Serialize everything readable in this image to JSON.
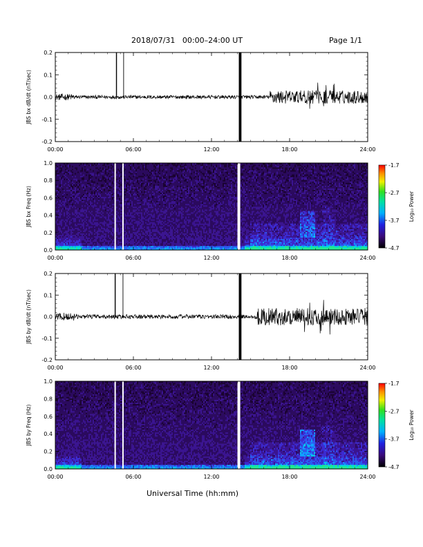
{
  "header": {
    "title": "2018/07/31   00:00–24:00 UT",
    "page": "Page 1/1"
  },
  "footer": {
    "xlabel": "Universal Time (hh:mm)"
  },
  "colors": {
    "trace": "#000000",
    "background": "#ffffff"
  },
  "chart_data": [
    {
      "type": "line",
      "ylabel": "JBS bx dB/dt (nT/sec)",
      "x_ticks": [
        "00:00",
        "06:00",
        "12:00",
        "18:00",
        "24:00"
      ],
      "y_ticks": [
        "0.2",
        "0.1",
        "0.0",
        "-0.1",
        "-0.2"
      ],
      "xlim": [
        0,
        24
      ],
      "ylim": [
        -0.2,
        0.2
      ],
      "baseline_amplitude_quiet": 0.008,
      "baseline_amplitude_active": 0.03,
      "active_from_hour": 16.5,
      "spikes_hours": [
        4.7,
        5.25
      ],
      "data_gap_hours": [
        14.1,
        14.3
      ]
    },
    {
      "type": "heatmap",
      "ylabel": "JBS bx Freq (Hz)",
      "x_ticks": [
        "00:00",
        "06:00",
        "12:00",
        "18:00",
        "24:00"
      ],
      "y_ticks": [
        "1.0",
        "0.8",
        "0.6",
        "0.4",
        "0.2",
        "0.0"
      ],
      "xlim": [
        0,
        24
      ],
      "ylim": [
        0,
        1.0
      ],
      "colorbar_label": "Log₁₀ Power",
      "colorbar_ticks": [
        "-1.7",
        "-2.7",
        "-3.7",
        "-4.7"
      ],
      "colorbar_range": [
        -4.7,
        -1.7
      ],
      "gap_hours": [
        4.6,
        5.2,
        14.1
      ]
    },
    {
      "type": "line",
      "ylabel": "JBS by dB/dt (nT/sec)",
      "x_ticks": [
        "00:00",
        "06:00",
        "12:00",
        "18:00",
        "24:00"
      ],
      "y_ticks": [
        "0.2",
        "0.1",
        "0.0",
        "-0.1",
        "-0.2"
      ],
      "xlim": [
        0,
        24
      ],
      "ylim": [
        -0.2,
        0.2
      ],
      "baseline_amplitude_quiet": 0.01,
      "baseline_amplitude_active": 0.04,
      "active_from_hour": 15.5,
      "spikes_hours": [
        4.6,
        5.2
      ],
      "data_gap_hours": [
        14.1,
        14.3
      ]
    },
    {
      "type": "heatmap",
      "ylabel": "JBS by Freq (Hz)",
      "x_ticks": [
        "00:00",
        "06:00",
        "12:00",
        "18:00",
        "24:00"
      ],
      "y_ticks": [
        "1.0",
        "0.8",
        "0.6",
        "0.4",
        "0.2",
        "0.0"
      ],
      "xlim": [
        0,
        24
      ],
      "ylim": [
        0,
        1.0
      ],
      "colorbar_label": "Log₁₀ Power",
      "colorbar_ticks": [
        "-1.7",
        "-2.7",
        "-3.7",
        "-4.7"
      ],
      "colorbar_range": [
        -4.7,
        -1.7
      ],
      "gap_hours": [
        4.6,
        5.2,
        14.1
      ]
    }
  ]
}
